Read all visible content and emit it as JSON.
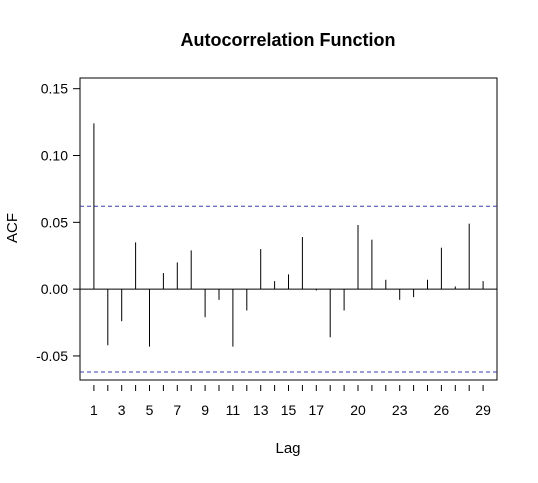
{
  "chart_data": {
    "type": "bar",
    "title": "Autocorrelation Function",
    "xlabel": "Lag",
    "ylabel": "ACF",
    "x": [
      1,
      2,
      3,
      4,
      5,
      6,
      7,
      8,
      9,
      10,
      11,
      12,
      13,
      14,
      15,
      16,
      17,
      18,
      19,
      20,
      21,
      22,
      23,
      24,
      25,
      26,
      27,
      28,
      29
    ],
    "values": [
      0.124,
      -0.042,
      -0.024,
      0.035,
      -0.043,
      0.012,
      0.02,
      0.029,
      -0.021,
      -0.008,
      -0.043,
      -0.016,
      0.03,
      0.006,
      0.011,
      0.039,
      -0.001,
      -0.036,
      -0.016,
      0.048,
      0.037,
      0.007,
      -0.008,
      -0.006,
      0.007,
      0.031,
      0.002,
      0.049,
      0.006
    ],
    "confidence_bounds": [
      0.062,
      -0.062
    ],
    "xlim": [
      0.0,
      30.0
    ],
    "ylim": [
      -0.068,
      0.158
    ],
    "y_ticks": [
      -0.05,
      0.0,
      0.05,
      0.1,
      0.15
    ],
    "y_tick_labels": [
      "-0.05",
      "0.00",
      "0.05",
      "0.10",
      "0.15"
    ],
    "x_labeled_ticks": [
      1,
      3,
      5,
      7,
      9,
      11,
      13,
      15,
      17,
      20,
      23,
      26,
      29
    ],
    "x_tick_labels": [
      "1",
      "3",
      "5",
      "7",
      "9",
      "11",
      "13",
      "15",
      "17",
      "20",
      "23",
      "26",
      "29"
    ],
    "grid": false,
    "colors": {
      "bars": "#000000",
      "confidence_line": "#3d3dad",
      "zero_line": "#000000",
      "frame": "#000000"
    }
  }
}
